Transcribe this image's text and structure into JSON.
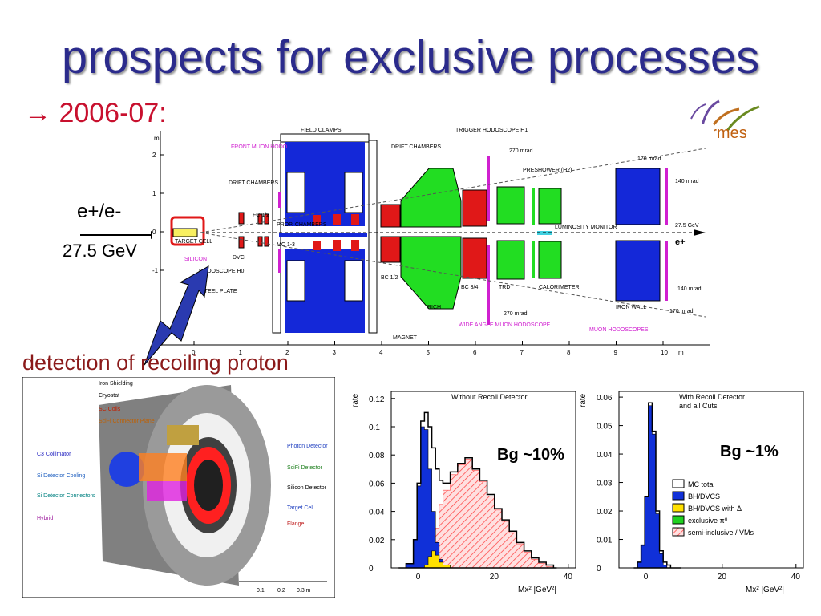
{
  "title": "prospects for exclusive processes",
  "subtitle": "→ 2006-07:",
  "logo": {
    "text": "hermes"
  },
  "beam": {
    "particles": "e+/e-",
    "energy": "27.5 GeV"
  },
  "detection_label": "detection of recoiling proton",
  "spectrometer": {
    "axis_x_ticks": [
      "0",
      "1",
      "2",
      "3",
      "4",
      "5",
      "6",
      "7",
      "8",
      "9",
      "10"
    ],
    "axis_x_unit": "m",
    "axis_y_ticks": [
      "2",
      "1",
      "0",
      "-1"
    ],
    "axis_y_unit": "m",
    "labels": {
      "field_clamps": "FIELD CLAMPS",
      "trigger_hodoscope": "TRIGGER HODOSCOPE H1",
      "drift_chambers_top": "DRIFT CHAMBERS",
      "mrad_270_top": "270 mrad",
      "mrad_170_top": "170 mrad",
      "mrad_140_top": "140 mrad",
      "preshower": "PRESHOWER (H2)",
      "front_muon": "FRONT MUON HODO",
      "drift_chambers_left": "DRIFT CHAMBERS",
      "fc": "FC 1/2",
      "prop_chambers": "PROP. CHAMBERS",
      "mc": "MC 1-3",
      "target_cell": "TARGET CELL",
      "silicon": "SILICON",
      "dvc": "DVC",
      "hodoscope_h0": "HODOSCOPE H0",
      "steel_plate": "STEEL PLATE",
      "bc12": "BC 1/2",
      "bc34": "BC 3/4",
      "rich": "RICH",
      "trd": "TRD",
      "calorimeter": "CALORIMETER",
      "luminosity": "LUMINOSITY MONITOR",
      "energy_tag": "27.5 GeV",
      "e_plus": "e+",
      "mrad_140_bot": "140 mrad",
      "mrad_170_bot": "170 mrad",
      "mrad_270_bot": "270 mrad",
      "iron_wall": "IRON WALL",
      "wide_angle": "WIDE ANGLE MUON HODOSCOPE",
      "muon_hodoscopes": "MUON HODOSCOPES",
      "magnet": "MAGNET"
    }
  },
  "recoil_detector": {
    "labels": {
      "iron_shielding": "Iron Shielding",
      "cryostat": "Cryostat",
      "sc_coils": "SC Coils",
      "scifi_connector": "SciFi Connector Plane",
      "c3_collimator": "C3 Collimator",
      "si_cooling": "Si Detector Cooling",
      "si_connectors": "Si Detector Connectors",
      "hybrid": "Hybrid",
      "photon_detector": "Photon Detector",
      "scifi_detector": "SciFi Detector",
      "silicon_detector": "Silicon Detector",
      "target_cell": "Target Cell",
      "flange": "Flange"
    },
    "scale_ticks": [
      "0.1",
      "0.2",
      "0.3 m"
    ]
  },
  "annotations": {
    "bg1": "Bg ~10%",
    "bg2": "Bg ~1%"
  },
  "chart_data": [
    {
      "type": "area",
      "title": "Without Recoil Detector",
      "xlabel": "Mx² |GeV²|",
      "ylabel": "rate",
      "xlim": [
        -8,
        42
      ],
      "ylim": [
        0,
        0.125
      ],
      "xticks": [
        "0",
        "20",
        "40"
      ],
      "yticks": [
        "0",
        "0.02",
        "0.04",
        "0.06",
        "0.08",
        "0.1",
        "0.12"
      ],
      "x": [
        -6,
        -4,
        -2,
        -1,
        0,
        1,
        2,
        3,
        4,
        5,
        6,
        8,
        10,
        12,
        14,
        16,
        18,
        20,
        22,
        24,
        26,
        28,
        30,
        32,
        34,
        36
      ],
      "series": [
        {
          "name": "MC total",
          "values": [
            0,
            0.003,
            0.02,
            0.06,
            0.104,
            0.11,
            0.1,
            0.085,
            0.07,
            0.062,
            0.06,
            0.068,
            0.074,
            0.078,
            0.07,
            0.062,
            0.052,
            0.042,
            0.034,
            0.026,
            0.018,
            0.012,
            0.007,
            0.004,
            0.002,
            0
          ]
        },
        {
          "name": "BH/DVCS",
          "values": [
            0,
            0.003,
            0.02,
            0.058,
            0.1,
            0.098,
            0.07,
            0.04,
            0.018,
            0.006,
            0.002,
            0,
            0,
            0,
            0,
            0,
            0,
            0,
            0,
            0,
            0,
            0,
            0,
            0,
            0,
            0
          ]
        },
        {
          "name": "BH/DVCS with Δ",
          "values": [
            0,
            0,
            0,
            0,
            0,
            0.002,
            0.008,
            0.012,
            0.009,
            0.004,
            0.002,
            0,
            0,
            0,
            0,
            0,
            0,
            0,
            0,
            0,
            0,
            0,
            0,
            0,
            0,
            0
          ]
        },
        {
          "name": "semi-inclusive / VMs",
          "values": [
            0,
            0,
            0,
            0,
            0,
            0,
            0.002,
            0.01,
            0.028,
            0.045,
            0.055,
            0.066,
            0.073,
            0.077,
            0.069,
            0.061,
            0.051,
            0.041,
            0.033,
            0.025,
            0.017,
            0.011,
            0.006,
            0.003,
            0.001,
            0
          ]
        }
      ]
    },
    {
      "type": "area",
      "title": "With Recoil Detector and all Cuts",
      "xlabel": "Mx² |GeV²|",
      "ylabel": "rate",
      "xlim": [
        -8,
        42
      ],
      "ylim": [
        0,
        0.062
      ],
      "xticks": [
        "0",
        "20",
        "40"
      ],
      "yticks": [
        "0",
        "0.01",
        "0.02",
        "0.03",
        "0.04",
        "0.05",
        "0.06"
      ],
      "x": [
        -4,
        -3,
        -2,
        -1,
        0,
        1,
        2,
        3,
        4,
        5,
        6,
        8
      ],
      "series": [
        {
          "name": "MC total",
          "values": [
            0,
            0.002,
            0.008,
            0.025,
            0.058,
            0.048,
            0.02,
            0.006,
            0.002,
            0.001,
            0,
            0
          ]
        },
        {
          "name": "BH/DVCS",
          "values": [
            0,
            0.002,
            0.008,
            0.025,
            0.057,
            0.047,
            0.019,
            0.005,
            0.001,
            0,
            0,
            0
          ]
        },
        {
          "name": "BH/DVCS with Δ",
          "values": [
            0,
            0,
            0,
            0,
            0,
            0,
            0,
            0,
            0,
            0,
            0,
            0
          ]
        },
        {
          "name": "exclusive π⁰",
          "values": [
            0,
            0,
            0,
            0,
            0,
            0,
            0,
            0,
            0,
            0,
            0,
            0
          ]
        },
        {
          "name": "semi-inclusive / VMs",
          "values": [
            0,
            0,
            0,
            0,
            0,
            0.001,
            0.002,
            0.002,
            0.001,
            0,
            0,
            0
          ]
        }
      ],
      "legend": {
        "position": "bottom-right",
        "entries": [
          {
            "name": "MC total",
            "color": "#ffffff"
          },
          {
            "name": "BH/DVCS",
            "color": "#1030d8"
          },
          {
            "name": "BH/DVCS with Δ",
            "color": "#ffe000"
          },
          {
            "name": "exclusive π⁰",
            "color": "#20d020"
          },
          {
            "name": "semi-inclusive / VMs",
            "color": "#ff6060"
          }
        ]
      }
    }
  ],
  "colors": {
    "title": "#2b2b8c",
    "subtitle": "#c8102e",
    "magnet": "#1428d8",
    "rich": "#22dd22",
    "chamber": "#e01818"
  }
}
